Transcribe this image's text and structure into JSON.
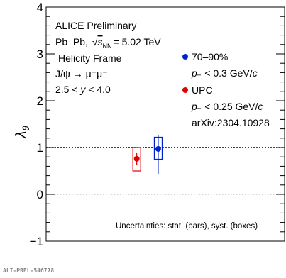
{
  "chart_data": {
    "type": "scatter",
    "ylabel": "λθ",
    "ylim": [
      -1,
      4
    ],
    "yticks": [
      "−1",
      "0",
      "1",
      "2",
      "3",
      "4"
    ],
    "ytick_values": [
      -1,
      0,
      1,
      2,
      3,
      4
    ],
    "xlim": [
      0,
      1
    ],
    "grid": false,
    "reference_lines": [
      {
        "y": 1,
        "style": "dotted",
        "color": "#000000"
      },
      {
        "y": 0,
        "style": "dotted",
        "color": "#aaaaaa"
      }
    ],
    "series": [
      {
        "name": "70–90%",
        "color": "#0022cc",
        "x": 0.47,
        "y": 0.97,
        "stat_low": 0.44,
        "stat_high": 1.27,
        "syst_low": 0.75,
        "syst_high": 1.22
      },
      {
        "name": "UPC",
        "color": "#e00000",
        "x": 0.38,
        "y": 0.76,
        "stat_low": 0.62,
        "stat_high": 0.88,
        "syst_low": 0.5,
        "syst_high": 1.0
      }
    ]
  },
  "labels": {
    "experiment": "ALICE Preliminary",
    "system_prefix": "Pb–Pb,",
    "energy": "= 5.02 TeV",
    "sqrt_s": "s",
    "sqrt_sub": "NN",
    "frame": "Helicity Frame",
    "decay": "J/ψ → μ⁺μ⁻",
    "rapidity": "2.5 < y < 4.0",
    "legend_70_90": "70–90%",
    "pt_cut_70_90": "< 0.3 GeV/c",
    "legend_upc": "UPC",
    "pt_cut_upc": "< 0.25 GeV/c",
    "pt_symbol": "p",
    "pt_sub": "T",
    "reference": "arXiv:2304.10928",
    "uncertainties": "Uncertainties: stat. (bars), syst. (boxes)",
    "footer": "ALI-PREL-546778"
  }
}
